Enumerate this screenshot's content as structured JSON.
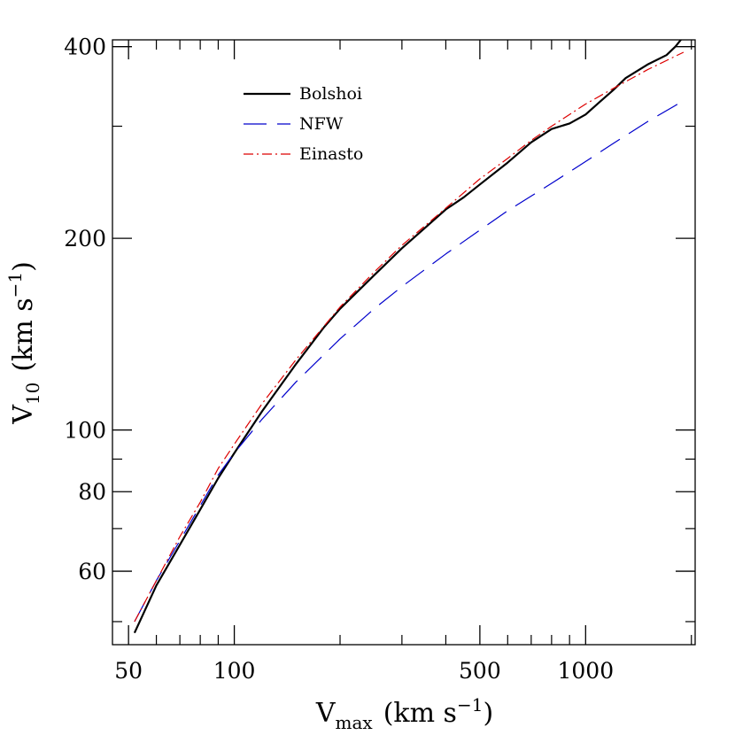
{
  "chart_data": {
    "type": "line",
    "xscale": "log",
    "yscale": "log",
    "xlim": [
      45,
      2050
    ],
    "ylim": [
      46,
      410
    ],
    "xlabel": {
      "main": "V",
      "sub": "max",
      "units": "(km s",
      "exp": "−1",
      "close": ")"
    },
    "ylabel": {
      "main": "V",
      "sub": "10",
      "units": "(km s",
      "exp": "−1",
      "close": ")"
    },
    "x_ticks_major": [
      {
        "value": 50,
        "label": "50"
      },
      {
        "value": 100,
        "label": "100"
      },
      {
        "value": 500,
        "label": "500"
      },
      {
        "value": 1000,
        "label": "1000"
      }
    ],
    "x_ticks_minor": [
      60,
      70,
      80,
      90,
      200,
      300,
      400,
      600,
      700,
      800,
      900,
      2000
    ],
    "y_ticks_major": [
      {
        "value": 60,
        "label": "60"
      },
      {
        "value": 80,
        "label": "80"
      },
      {
        "value": 100,
        "label": "100"
      },
      {
        "value": 200,
        "label": "200"
      },
      {
        "value": 400,
        "label": "400"
      }
    ],
    "y_ticks_minor": [
      50,
      70,
      90,
      300
    ],
    "legend": {
      "position": "top-left"
    },
    "series": [
      {
        "name": "Bolshoi",
        "color": "#000000",
        "dash": "solid",
        "x": [
          52,
          60,
          70,
          80,
          90,
          100,
          120,
          150,
          180,
          200,
          250,
          300,
          350,
          400,
          450,
          500,
          600,
          700,
          800,
          900,
          1000,
          1100,
          1200,
          1300,
          1500,
          1700,
          1800,
          1900
        ],
        "y": [
          48,
          57,
          66,
          75,
          84,
          92,
          107,
          127,
          145,
          155,
          175,
          193,
          208,
          222,
          232,
          243,
          263,
          283,
          297,
          303,
          313,
          328,
          342,
          357,
          375,
          388,
          400,
          415
        ]
      },
      {
        "name": "NFW",
        "color": "#0000cc",
        "dash": "long-dash",
        "x": [
          52,
          60,
          70,
          80,
          90,
          100,
          120,
          150,
          200,
          250,
          300,
          400,
          500,
          600,
          700,
          800,
          1000,
          1200,
          1500,
          1900
        ],
        "y": [
          50,
          58,
          67,
          76,
          85,
          92,
          104,
          119,
          139,
          155,
          168,
          189,
          206,
          221,
          233,
          244,
          264,
          282,
          305,
          329
        ]
      },
      {
        "name": "Einasto",
        "color": "#dd0000",
        "dash": "dash-dot",
        "x": [
          52,
          60,
          70,
          80,
          90,
          100,
          120,
          150,
          200,
          250,
          300,
          400,
          500,
          600,
          700,
          800,
          1000,
          1200,
          1500,
          1900
        ],
        "y": [
          50,
          58,
          68,
          77,
          87,
          95,
          110,
          129,
          156,
          177,
          195,
          223,
          248,
          267,
          285,
          300,
          325,
          344,
          368,
          392
        ]
      }
    ]
  }
}
